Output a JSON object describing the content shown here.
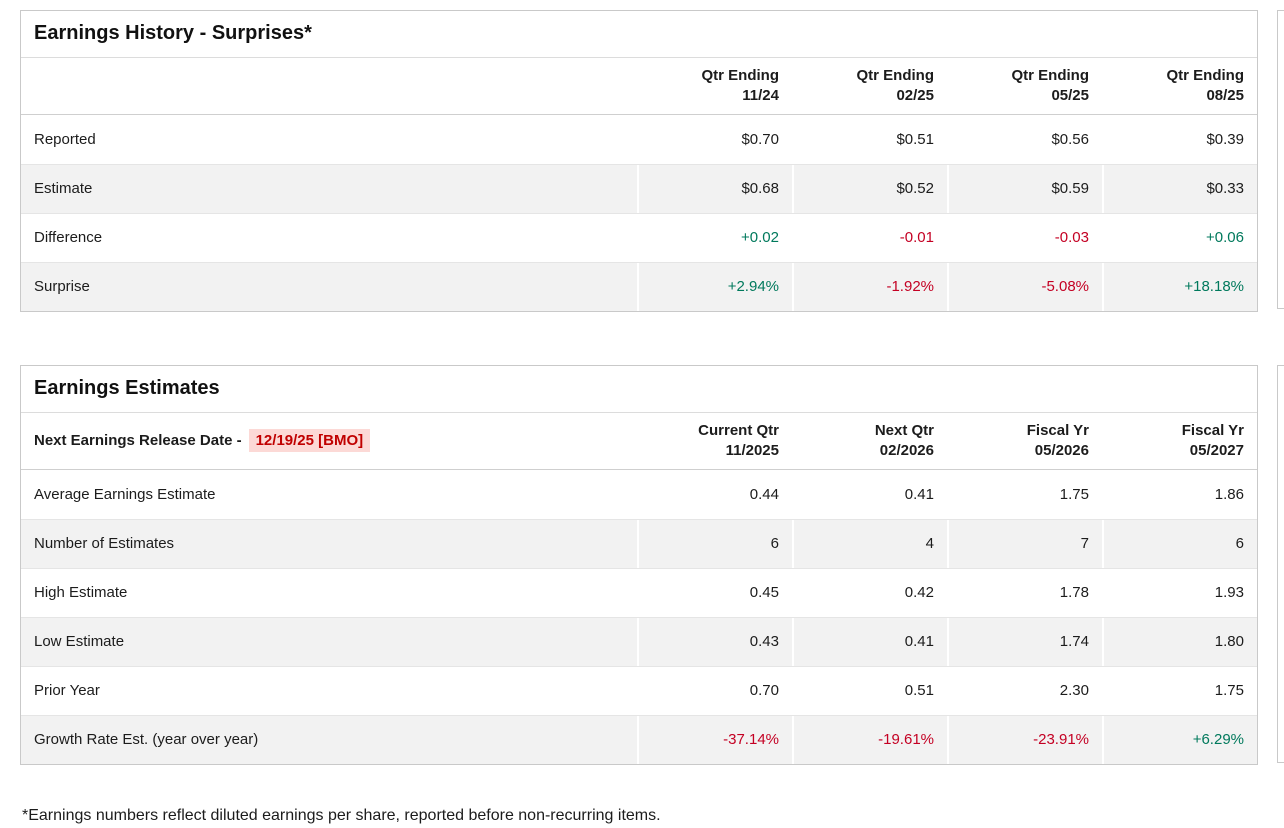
{
  "colors": {
    "positive": "#00795c",
    "negative": "#c40023",
    "release_date_text": "#c00000",
    "release_date_bg": "#fcd9d6"
  },
  "tables": [
    {
      "id": "surprises",
      "title": "Earnings History - Surprises*",
      "columns": [
        [
          "Qtr Ending",
          "11/24"
        ],
        [
          "Qtr Ending",
          "02/25"
        ],
        [
          "Qtr Ending",
          "05/25"
        ],
        [
          "Qtr Ending",
          "08/25"
        ]
      ],
      "rows": [
        {
          "label": "Reported",
          "values": [
            "$0.70",
            "$0.51",
            "$0.56",
            "$0.39"
          ],
          "tones": [
            "",
            "",
            "",
            ""
          ]
        },
        {
          "label": "Estimate",
          "values": [
            "$0.68",
            "$0.52",
            "$0.59",
            "$0.33"
          ],
          "tones": [
            "",
            "",
            "",
            ""
          ]
        },
        {
          "label": "Difference",
          "values": [
            "+0.02",
            "-0.01",
            "-0.03",
            "+0.06"
          ],
          "tones": [
            "pos",
            "neg",
            "neg",
            "pos"
          ]
        },
        {
          "label": "Surprise",
          "values": [
            "+2.94%",
            "-1.92%",
            "-5.08%",
            "+18.18%"
          ],
          "tones": [
            "pos",
            "neg",
            "neg",
            "pos"
          ]
        }
      ]
    },
    {
      "id": "estimates",
      "title": "Earnings Estimates",
      "release_label": "Next Earnings Release Date -",
      "release_date": "12/19/25 [BMO]",
      "columns": [
        [
          "Current Qtr",
          "11/2025"
        ],
        [
          "Next Qtr",
          "02/2026"
        ],
        [
          "Fiscal Yr",
          "05/2026"
        ],
        [
          "Fiscal Yr",
          "05/2027"
        ]
      ],
      "rows": [
        {
          "label": "Average Earnings Estimate",
          "values": [
            "0.44",
            "0.41",
            "1.75",
            "1.86"
          ],
          "tones": [
            "",
            "",
            "",
            ""
          ]
        },
        {
          "label": "Number of Estimates",
          "values": [
            "6",
            "4",
            "7",
            "6"
          ],
          "tones": [
            "",
            "",
            "",
            ""
          ]
        },
        {
          "label": "High Estimate",
          "values": [
            "0.45",
            "0.42",
            "1.78",
            "1.93"
          ],
          "tones": [
            "",
            "",
            "",
            ""
          ]
        },
        {
          "label": "Low Estimate",
          "values": [
            "0.43",
            "0.41",
            "1.74",
            "1.80"
          ],
          "tones": [
            "",
            "",
            "",
            ""
          ]
        },
        {
          "label": "Prior Year",
          "values": [
            "0.70",
            "0.51",
            "2.30",
            "1.75"
          ],
          "tones": [
            "",
            "",
            "",
            ""
          ]
        },
        {
          "label": "Growth Rate Est. (year over year)",
          "values": [
            "-37.14%",
            "-19.61%",
            "-23.91%",
            "+6.29%"
          ],
          "tones": [
            "neg",
            "neg",
            "neg",
            "pos"
          ]
        }
      ]
    }
  ],
  "footnote": "*Earnings numbers reflect diluted earnings per share, reported before non-recurring items."
}
